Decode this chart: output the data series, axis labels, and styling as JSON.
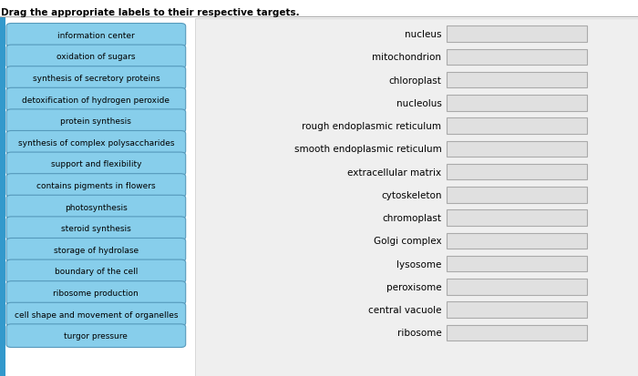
{
  "title": "Drag the appropriate labels to their respective targets.",
  "left_labels": [
    "information center",
    "oxidation of sugars",
    "synthesis of secretory proteins",
    "detoxification of hydrogen peroxide",
    "protein synthesis",
    "synthesis of complex polysaccharides",
    "support and flexibility",
    "contains pigments in flowers",
    "photosynthesis",
    "steroid synthesis",
    "storage of hydrolase",
    "boundary of the cell",
    "ribosome production",
    "cell shape and movement of organelles",
    "turgor pressure"
  ],
  "right_labels": [
    "nucleus",
    "mitochondrion",
    "chloroplast",
    "nucleolus",
    "rough endoplasmic reticulum",
    "smooth endoplasmic reticulum",
    "extracellular matrix",
    "cytoskeleton",
    "chromoplast",
    "Golgi complex",
    "lysosome",
    "peroxisome",
    "central vacuole",
    "ribosome"
  ],
  "bg_color": "#ffffff",
  "left_panel_bg": "#ffffff",
  "right_panel_bg": "#efefef",
  "btn_fill": "#87ceeb",
  "btn_edge": "#5599bb",
  "input_fill": "#e0e0e0",
  "input_edge": "#aaaaaa",
  "title_fontsize": 7.5,
  "label_fontsize": 7.5,
  "btn_fontsize": 6.5,
  "divider_color": "#3399cc"
}
